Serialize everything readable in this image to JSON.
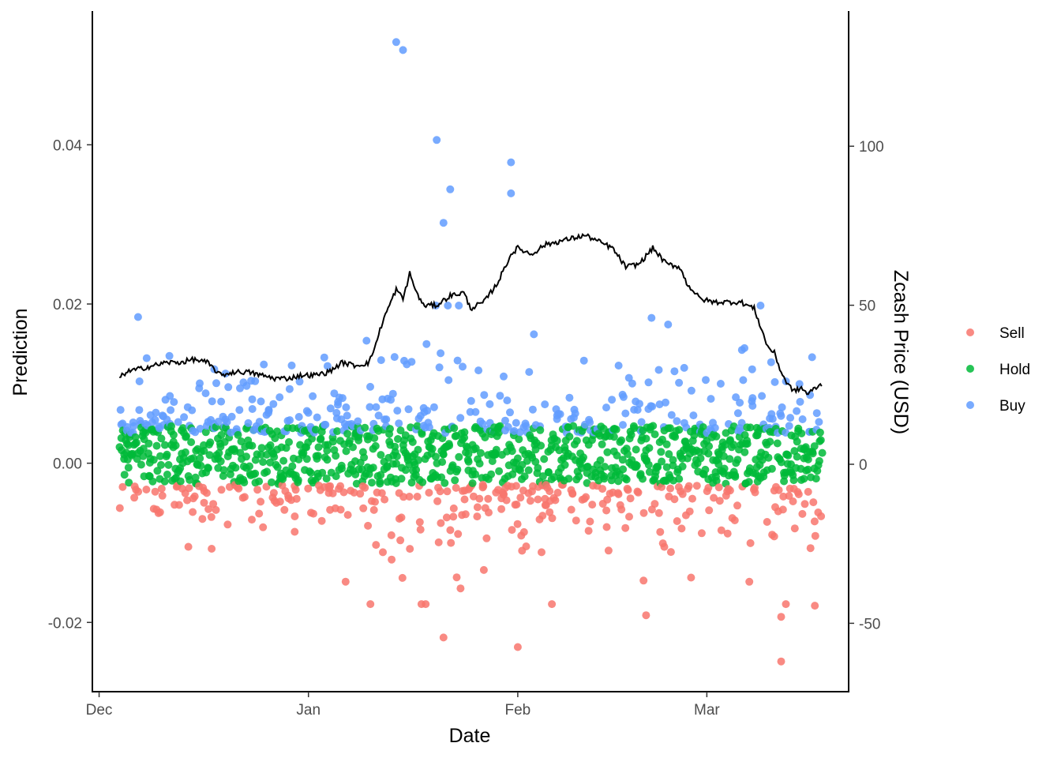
{
  "chart_data": {
    "type": "scatter",
    "xlabel": "Date",
    "ylabel": "Prediction",
    "y2label": "Zcash Price (USD)",
    "x_ticks": [
      "Dec",
      "Jan",
      "Feb",
      "Mar"
    ],
    "y_ticks": [
      "-0.02",
      "0.00",
      "0.02",
      "0.04"
    ],
    "y2_ticks": [
      "-50",
      "0",
      "50",
      "100"
    ],
    "ylim": [
      -0.0287,
      0.0568
    ],
    "y2lim": [
      -71.5,
      142.5
    ],
    "xlim": [
      "2017-11-30",
      "2018-03-22"
    ],
    "grid": false,
    "legend_position": "right",
    "series": [
      {
        "name": "Sell",
        "color": "#F8766D",
        "values_range": [
          -0.0249,
          -0.0025
        ]
      },
      {
        "name": "Hold",
        "color": "#00BA38",
        "values_range": [
          -0.0028,
          0.0048
        ]
      },
      {
        "name": "Buy",
        "color": "#619CFF",
        "values_range": [
          0.0035,
          0.0529
        ]
      }
    ],
    "notable_points": [
      {
        "series": "Buy",
        "date": "2018-01-14",
        "value": 0.0529
      },
      {
        "series": "Buy",
        "date": "2018-01-15",
        "value": 0.0519
      },
      {
        "series": "Buy",
        "date": "2018-01-20",
        "value": 0.0406
      },
      {
        "series": "Buy",
        "date": "2018-01-31",
        "value": 0.0378
      },
      {
        "series": "Buy",
        "date": "2018-01-31",
        "value": 0.0339
      },
      {
        "series": "Buy",
        "date": "2018-01-22",
        "value": 0.0344
      },
      {
        "series": "Buy",
        "date": "2018-01-21",
        "value": 0.0302
      },
      {
        "series": "Sell",
        "date": "2018-01-21",
        "value": -0.0219
      },
      {
        "series": "Sell",
        "date": "2018-02-01",
        "value": -0.0231
      },
      {
        "series": "Sell",
        "date": "2018-02-20",
        "value": -0.0191
      },
      {
        "series": "Sell",
        "date": "2018-03-12",
        "value": -0.0249
      },
      {
        "series": "Sell",
        "date": "2018-03-12",
        "value": -0.0193
      },
      {
        "series": "Sell",
        "date": "2018-03-17",
        "value": -0.0179
      }
    ],
    "price_line": {
      "name": "Zcash Price (USD)",
      "color": "#000000",
      "points": [
        [
          "2017-12-04",
          27
        ],
        [
          "2017-12-05",
          29
        ],
        [
          "2017-12-07",
          30
        ],
        [
          "2017-12-09",
          31
        ],
        [
          "2017-12-11",
          32
        ],
        [
          "2017-12-13",
          32
        ],
        [
          "2017-12-15",
          33
        ],
        [
          "2017-12-17",
          32
        ],
        [
          "2017-12-19",
          28
        ],
        [
          "2017-12-21",
          29
        ],
        [
          "2017-12-23",
          29
        ],
        [
          "2017-12-25",
          28
        ],
        [
          "2017-12-27",
          27
        ],
        [
          "2017-12-29",
          27
        ],
        [
          "2017-12-31",
          28
        ],
        [
          "2018-01-02",
          28
        ],
        [
          "2018-01-04",
          29
        ],
        [
          "2018-01-06",
          32
        ],
        [
          "2018-01-08",
          31
        ],
        [
          "2018-01-10",
          32
        ],
        [
          "2018-01-11",
          38
        ],
        [
          "2018-01-12",
          45
        ],
        [
          "2018-01-13",
          50
        ],
        [
          "2018-01-14",
          55
        ],
        [
          "2018-01-15",
          52
        ],
        [
          "2018-01-16",
          60
        ],
        [
          "2018-01-17",
          54
        ],
        [
          "2018-01-18",
          50
        ],
        [
          "2018-01-20",
          50
        ],
        [
          "2018-01-22",
          53
        ],
        [
          "2018-01-24",
          54
        ],
        [
          "2018-01-25",
          49
        ],
        [
          "2018-01-27",
          51
        ],
        [
          "2018-01-29",
          57
        ],
        [
          "2018-01-31",
          66
        ],
        [
          "2018-02-01",
          68
        ],
        [
          "2018-02-03",
          66
        ],
        [
          "2018-02-05",
          69
        ],
        [
          "2018-02-07",
          70
        ],
        [
          "2018-02-09",
          71
        ],
        [
          "2018-02-11",
          72
        ],
        [
          "2018-02-13",
          70
        ],
        [
          "2018-02-15",
          68
        ],
        [
          "2018-02-17",
          62
        ],
        [
          "2018-02-19",
          63
        ],
        [
          "2018-02-21",
          68
        ],
        [
          "2018-02-23",
          63
        ],
        [
          "2018-02-25",
          62
        ],
        [
          "2018-02-26",
          57
        ],
        [
          "2018-02-28",
          52
        ],
        [
          "2018-03-02",
          51
        ],
        [
          "2018-03-04",
          51
        ],
        [
          "2018-03-06",
          51
        ],
        [
          "2018-03-08",
          49
        ],
        [
          "2018-03-09",
          43
        ],
        [
          "2018-03-10",
          37
        ],
        [
          "2018-03-11",
          35
        ],
        [
          "2018-03-12",
          29
        ],
        [
          "2018-03-13",
          25
        ],
        [
          "2018-03-14",
          23
        ],
        [
          "2018-03-15",
          24
        ],
        [
          "2018-03-16",
          22
        ],
        [
          "2018-03-17",
          24
        ],
        [
          "2018-03-18",
          25
        ]
      ]
    }
  }
}
